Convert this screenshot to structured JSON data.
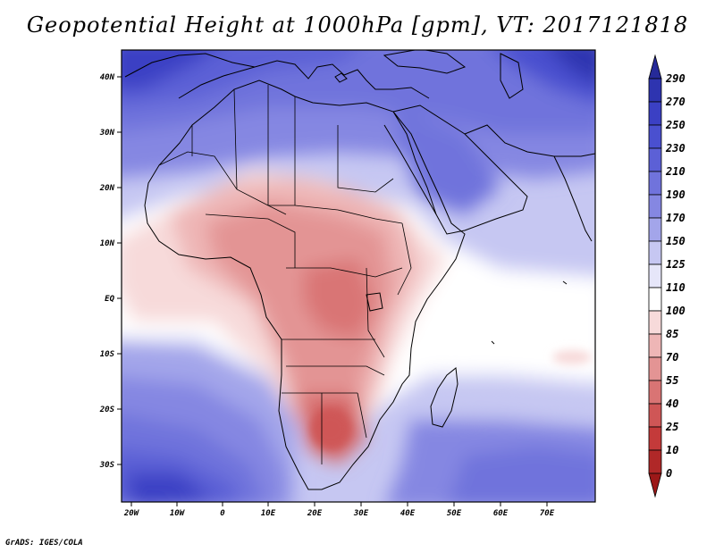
{
  "title": "Geopotential Height at 1000hPa [gpm], VT: 2017121818",
  "credit": "GrADS: IGES/COLA",
  "lat_labels": [
    "40N",
    "30N",
    "20N",
    "10N",
    "EQ",
    "10S",
    "20S",
    "30S"
  ],
  "lon_labels": [
    "20W",
    "10W",
    "0",
    "10E",
    "20E",
    "30E",
    "40E",
    "50E",
    "60E",
    "70E"
  ],
  "colorbar": {
    "levels": [
      "290",
      "270",
      "250",
      "230",
      "210",
      "190",
      "170",
      "150",
      "125",
      "110",
      "100",
      "85",
      "70",
      "55",
      "40",
      "25",
      "10",
      "0"
    ],
    "colors": [
      "#262a99",
      "#2e34b0",
      "#3b40c4",
      "#4a50cf",
      "#5c60d6",
      "#7073dc",
      "#8587e2",
      "#a3a5ea",
      "#c6c7f2",
      "#e6e6f9",
      "#ffffff",
      "#f7dada",
      "#eeb6b6",
      "#e39494",
      "#d97474",
      "#cf5656",
      "#c43a3a",
      "#b02828",
      "#9c1818"
    ]
  }
}
